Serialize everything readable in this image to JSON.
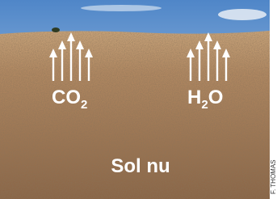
{
  "co2_label": {
    "main": "CO",
    "subscript": "2"
  },
  "h2o_label": {
    "before": "H",
    "subscript": "2",
    "after": "O"
  },
  "caption": "Sol nu",
  "credit": "F. THOMAS"
}
